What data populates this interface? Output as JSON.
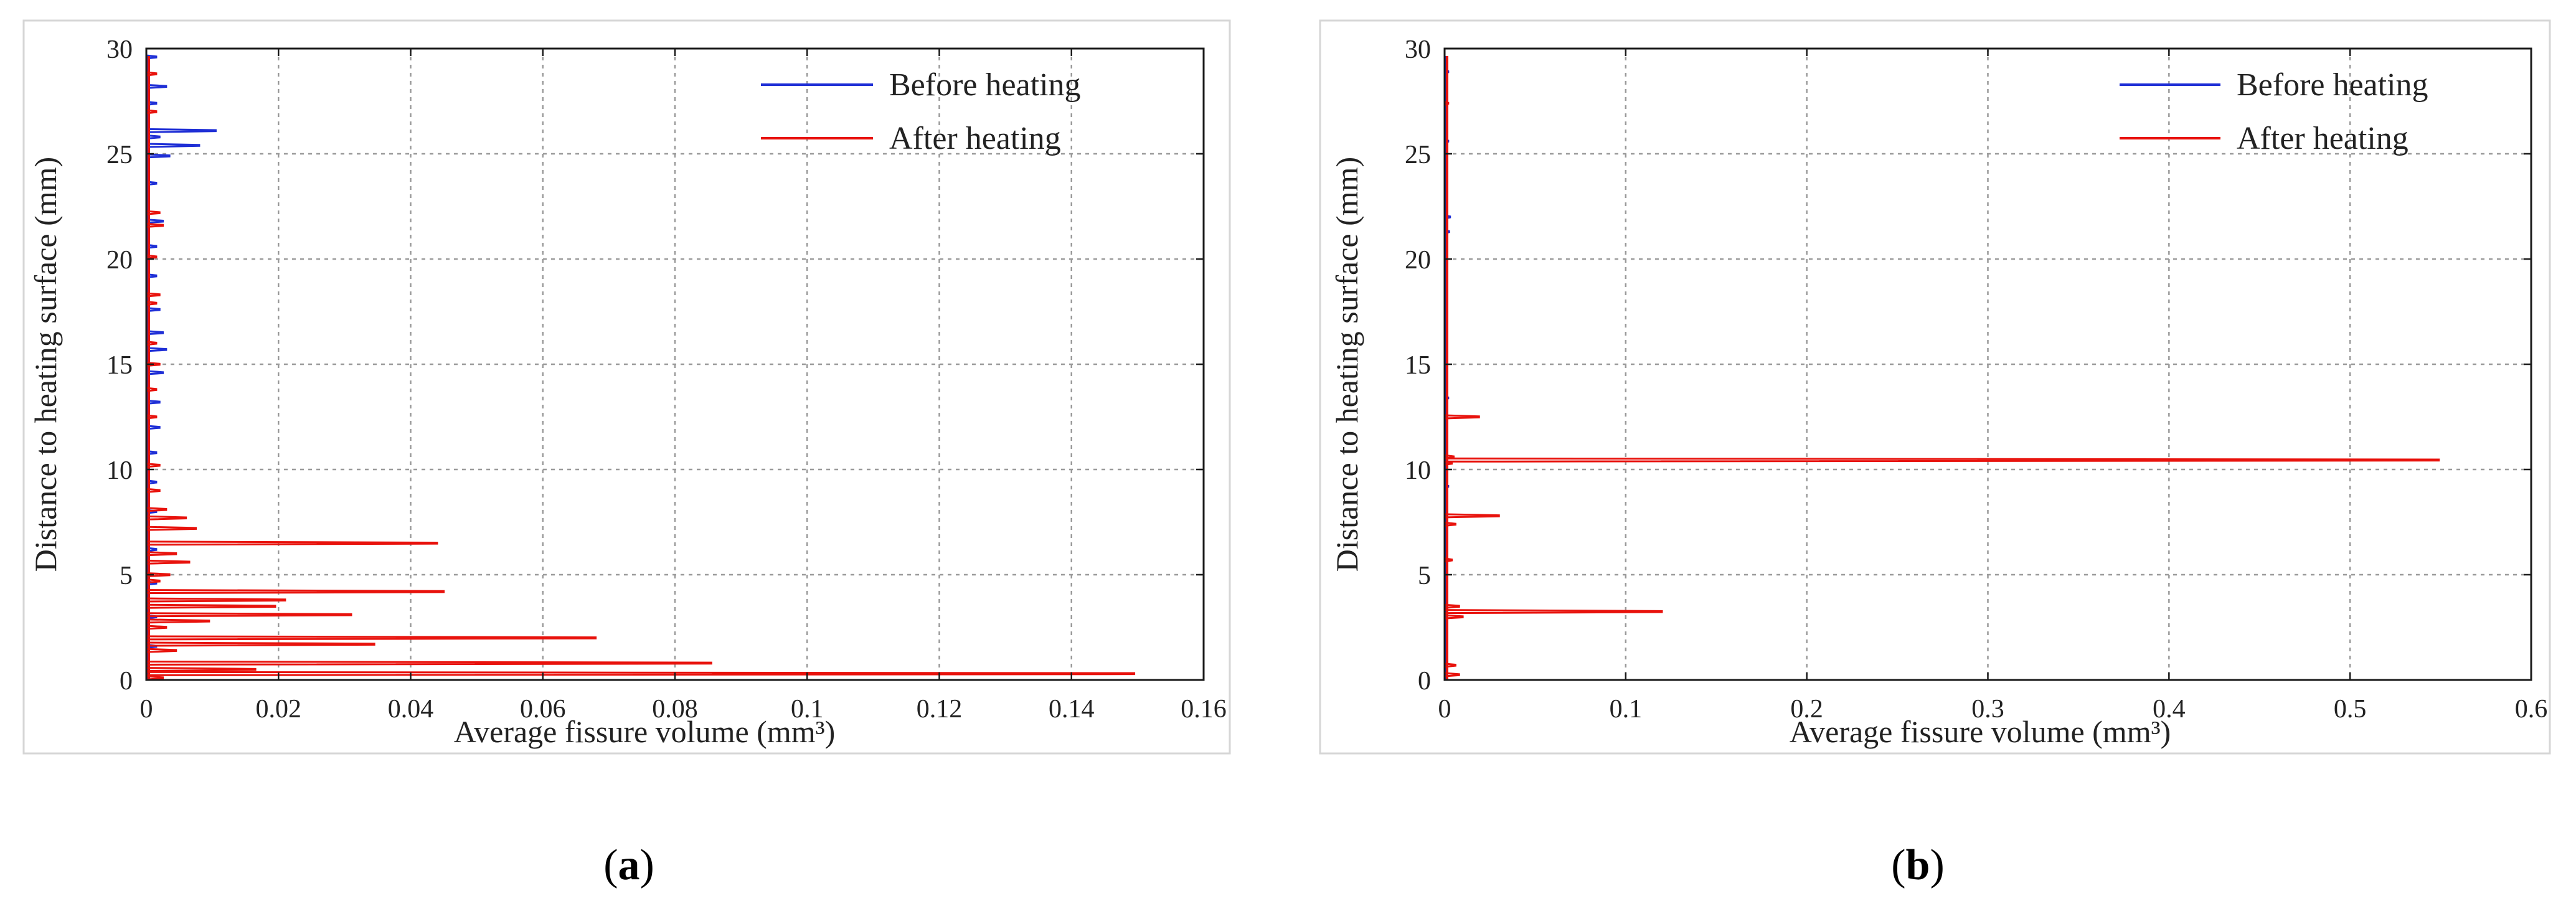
{
  "chart_data": [
    {
      "type": "line",
      "panel_label": "a",
      "title": "",
      "xlabel": "Average fissure volume (mm³)",
      "ylabel": "Distance to heating surface (mm)",
      "xlim": [
        0,
        0.16
      ],
      "ylim": [
        0,
        30
      ],
      "x_ticks": [
        0,
        0.02,
        0.04,
        0.06,
        0.08,
        0.1,
        0.12,
        0.14,
        0.16
      ],
      "x_tick_labels": [
        "0",
        "0.02",
        "0.04",
        "0.06",
        "0.08",
        "0.1",
        "0.12",
        "0.14",
        "0.16"
      ],
      "y_ticks": [
        0,
        5,
        10,
        15,
        20,
        25,
        30
      ],
      "y_tick_labels": [
        "0",
        "5",
        "10",
        "15",
        "20",
        "25",
        "30"
      ],
      "grid": true,
      "legend_position": "top-right",
      "series": [
        {
          "name": "Before heating",
          "color": "#1f2fd6",
          "spikes": [
            {
              "y": 29.6,
              "x": 0.0015
            },
            {
              "y": 28.2,
              "x": 0.003
            },
            {
              "y": 27.4,
              "x": 0.0015
            },
            {
              "y": 26.1,
              "x": 0.0105
            },
            {
              "y": 25.8,
              "x": 0.002
            },
            {
              "y": 25.4,
              "x": 0.008
            },
            {
              "y": 24.9,
              "x": 0.0035
            },
            {
              "y": 23.6,
              "x": 0.0015
            },
            {
              "y": 21.8,
              "x": 0.0025
            },
            {
              "y": 20.6,
              "x": 0.0015
            },
            {
              "y": 19.2,
              "x": 0.0015
            },
            {
              "y": 17.6,
              "x": 0.002
            },
            {
              "y": 16.5,
              "x": 0.0025
            },
            {
              "y": 15.7,
              "x": 0.003
            },
            {
              "y": 14.6,
              "x": 0.0025
            },
            {
              "y": 13.2,
              "x": 0.002
            },
            {
              "y": 12.0,
              "x": 0.002
            },
            {
              "y": 10.8,
              "x": 0.0015
            },
            {
              "y": 9.4,
              "x": 0.0015
            },
            {
              "y": 8.0,
              "x": 0.0015
            },
            {
              "y": 6.2,
              "x": 0.0015
            },
            {
              "y": 4.6,
              "x": 0.0015
            },
            {
              "y": 3.0,
              "x": 0.0015
            },
            {
              "y": 1.6,
              "x": 0.0015
            }
          ]
        },
        {
          "name": "After heating",
          "color": "#e8120c",
          "spikes": [
            {
              "y": 28.8,
              "x": 0.0015
            },
            {
              "y": 27.0,
              "x": 0.0015
            },
            {
              "y": 22.2,
              "x": 0.002
            },
            {
              "y": 21.6,
              "x": 0.0025
            },
            {
              "y": 20.1,
              "x": 0.0015
            },
            {
              "y": 18.3,
              "x": 0.002
            },
            {
              "y": 17.9,
              "x": 0.0015
            },
            {
              "y": 16.0,
              "x": 0.0015
            },
            {
              "y": 15.0,
              "x": 0.002
            },
            {
              "y": 13.8,
              "x": 0.0015
            },
            {
              "y": 12.5,
              "x": 0.0015
            },
            {
              "y": 10.2,
              "x": 0.002
            },
            {
              "y": 9.0,
              "x": 0.002
            },
            {
              "y": 8.1,
              "x": 0.003
            },
            {
              "y": 7.7,
              "x": 0.006
            },
            {
              "y": 7.2,
              "x": 0.0075
            },
            {
              "y": 6.5,
              "x": 0.044
            },
            {
              "y": 6.0,
              "x": 0.0045
            },
            {
              "y": 5.6,
              "x": 0.0065
            },
            {
              "y": 5.0,
              "x": 0.0035
            },
            {
              "y": 4.7,
              "x": 0.002
            },
            {
              "y": 4.2,
              "x": 0.045
            },
            {
              "y": 3.8,
              "x": 0.021
            },
            {
              "y": 3.5,
              "x": 0.0195
            },
            {
              "y": 3.1,
              "x": 0.031
            },
            {
              "y": 2.8,
              "x": 0.0095
            },
            {
              "y": 2.5,
              "x": 0.003
            },
            {
              "y": 2.0,
              "x": 0.068
            },
            {
              "y": 1.7,
              "x": 0.0345
            },
            {
              "y": 1.4,
              "x": 0.0045
            },
            {
              "y": 0.8,
              "x": 0.0855
            },
            {
              "y": 0.5,
              "x": 0.0165
            },
            {
              "y": 0.3,
              "x": 0.1495
            },
            {
              "y": 0.1,
              "x": 0.0025
            }
          ]
        }
      ]
    },
    {
      "type": "line",
      "panel_label": "b",
      "title": "",
      "xlabel": "Average fissure volume (mm³)",
      "ylabel": "Distance to heating surface (mm)",
      "xlim": [
        0,
        0.6
      ],
      "ylim": [
        0,
        30
      ],
      "x_ticks": [
        0,
        0.1,
        0.2,
        0.3,
        0.4,
        0.5,
        0.6
      ],
      "x_tick_labels": [
        "0",
        "0.1",
        "0.2",
        "0.3",
        "0.4",
        "0.5",
        "0.6"
      ],
      "y_ticks": [
        0,
        5,
        10,
        15,
        20,
        25,
        30
      ],
      "y_tick_labels": [
        "0",
        "5",
        "10",
        "15",
        "20",
        "25",
        "30"
      ],
      "grid": true,
      "legend_position": "top-right",
      "series": [
        {
          "name": "Before heating",
          "color": "#1f2fd6",
          "spikes": [
            {
              "y": 28.9,
              "x": 0.002
            },
            {
              "y": 27.0,
              "x": 0.0015
            },
            {
              "y": 25.6,
              "x": 0.002
            },
            {
              "y": 24.0,
              "x": 0.0015
            },
            {
              "y": 22.0,
              "x": 0.003
            },
            {
              "y": 21.3,
              "x": 0.0025
            },
            {
              "y": 19.8,
              "x": 0.0015
            },
            {
              "y": 17.5,
              "x": 0.0015
            },
            {
              "y": 15.1,
              "x": 0.0015
            },
            {
              "y": 13.4,
              "x": 0.002
            },
            {
              "y": 11.2,
              "x": 0.0015
            },
            {
              "y": 9.2,
              "x": 0.002
            },
            {
              "y": 7.0,
              "x": 0.0015
            },
            {
              "y": 5.4,
              "x": 0.0015
            },
            {
              "y": 2.4,
              "x": 0.0015
            }
          ]
        },
        {
          "name": "After heating",
          "color": "#e8120c",
          "spikes": [
            {
              "y": 27.4,
              "x": 0.002
            },
            {
              "y": 12.5,
              "x": 0.019
            },
            {
              "y": 10.6,
              "x": 0.005
            },
            {
              "y": 10.45,
              "x": 0.549
            },
            {
              "y": 10.3,
              "x": 0.004
            },
            {
              "y": 7.8,
              "x": 0.03
            },
            {
              "y": 7.4,
              "x": 0.006
            },
            {
              "y": 5.7,
              "x": 0.004
            },
            {
              "y": 3.5,
              "x": 0.008
            },
            {
              "y": 3.25,
              "x": 0.12
            },
            {
              "y": 3.0,
              "x": 0.01
            },
            {
              "y": 0.7,
              "x": 0.006
            },
            {
              "y": 0.25,
              "x": 0.008
            }
          ]
        }
      ]
    }
  ]
}
